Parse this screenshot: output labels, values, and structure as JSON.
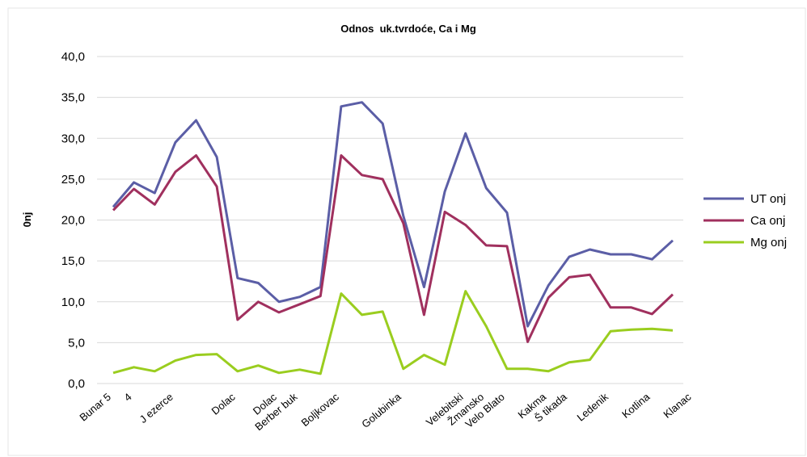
{
  "chart_data": {
    "type": "line",
    "title": "Odnos  uk.tvrdoće, Ca i Mg",
    "ylabel": "0nj",
    "xlabel": "",
    "ylim": [
      0,
      40
    ],
    "yticks": [
      "0,0",
      "5,0",
      "10,0",
      "15,0",
      "20,0",
      "25,0",
      "30,0",
      "35,0",
      "40,0"
    ],
    "grid": true,
    "legend": "right",
    "x_count": 28,
    "x_labels": [
      {
        "index": 0,
        "text": "Bunar 5"
      },
      {
        "index": 1,
        "text": "4"
      },
      {
        "index": 3,
        "text": "J ezerce"
      },
      {
        "index": 6,
        "text": "Dolac"
      },
      {
        "index": 8,
        "text": "Dolac"
      },
      {
        "index": 9,
        "text": "Berber buk"
      },
      {
        "index": 11,
        "text": "Boljkovac"
      },
      {
        "index": 14,
        "text": "Golubinka"
      },
      {
        "index": 17,
        "text": "Velebitski"
      },
      {
        "index": 18,
        "text": "Žmansko"
      },
      {
        "index": 19,
        "text": "Velo Blato"
      },
      {
        "index": 21,
        "text": "Kakma"
      },
      {
        "index": 22,
        "text": "Š tikada"
      },
      {
        "index": 24,
        "text": "Ledenik"
      },
      {
        "index": 26,
        "text": "Kotlina"
      },
      {
        "index": 28,
        "text": "Klanac"
      }
    ],
    "series": [
      {
        "name": "UT onj",
        "color": "#5b5ea6",
        "values": [
          21.6,
          24.6,
          23.3,
          29.5,
          32.2,
          27.7,
          12.9,
          12.3,
          10.0,
          10.6,
          11.8,
          33.9,
          34.4,
          31.8,
          20.5,
          11.8,
          23.5,
          30.6,
          23.9,
          20.9,
          7.0,
          12.0,
          15.5,
          16.4,
          15.8,
          15.8,
          15.2,
          17.5
        ]
      },
      {
        "name": "Ca onj",
        "color": "#a0305e",
        "values": [
          21.2,
          23.8,
          21.9,
          25.9,
          27.9,
          24.1,
          7.8,
          10.0,
          8.7,
          9.7,
          10.7,
          27.9,
          25.5,
          25.0,
          19.6,
          8.4,
          21.0,
          19.4,
          16.9,
          16.8,
          5.1,
          10.5,
          13.0,
          13.3,
          9.3,
          9.3,
          8.5,
          10.9
        ]
      },
      {
        "name": "Mg onj",
        "color": "#9acd1f",
        "values": [
          1.3,
          2.0,
          1.5,
          2.8,
          3.5,
          3.6,
          1.5,
          2.2,
          1.3,
          1.7,
          1.2,
          11.0,
          8.4,
          8.8,
          1.8,
          3.5,
          2.3,
          11.3,
          7.0,
          1.8,
          1.8,
          1.5,
          2.6,
          2.9,
          6.4,
          6.6,
          6.7,
          6.5
        ]
      }
    ]
  }
}
